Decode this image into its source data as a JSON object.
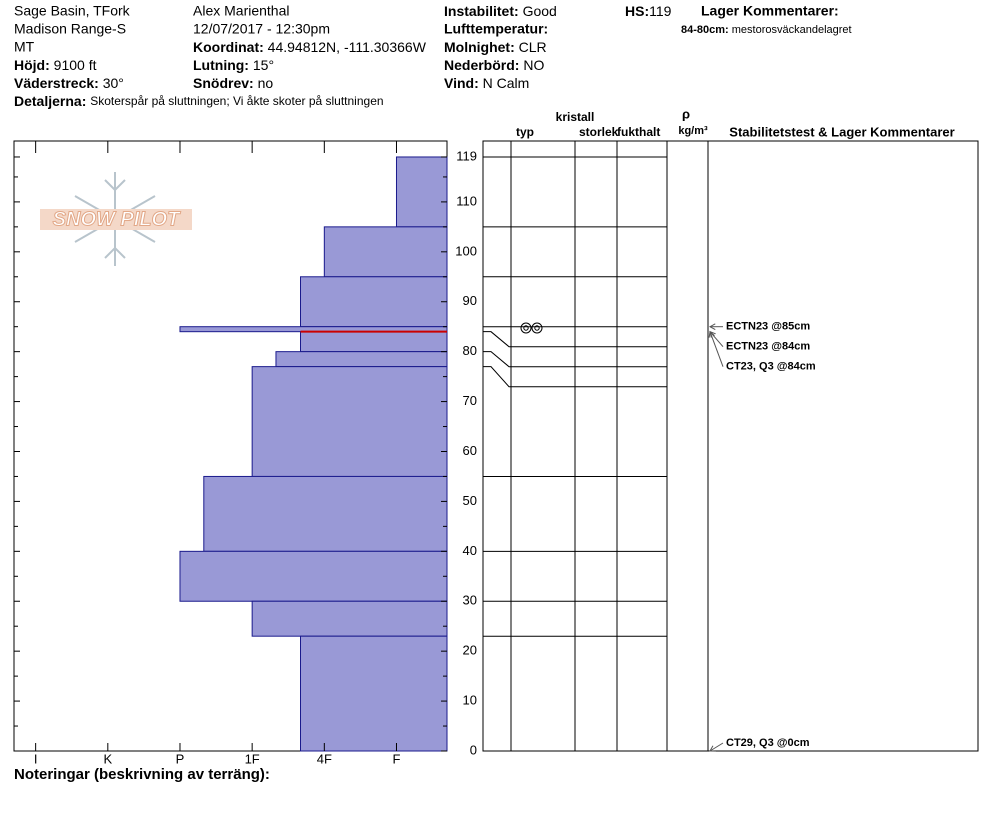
{
  "header": {
    "site": "Sage Basin, TFork",
    "range": "Madison Range-S",
    "state": "MT",
    "observer": "Alex Marienthal",
    "datetime": "12/07/2017 - 12:30pm",
    "elevation": {
      "label": "Höjd:",
      "value": "9100 ft"
    },
    "aspect": {
      "label": "Väderstreck:",
      "value": "30°"
    },
    "coordinates": {
      "label": "Koordinat:",
      "value": "44.94812N, -111.30366W"
    },
    "slope": {
      "label": "Lutning:",
      "value": "15°"
    },
    "wind_loading": {
      "label": "Snödrev:",
      "value": "no"
    },
    "instability": {
      "label": "Instabilitet:",
      "value": "Good"
    },
    "air_temperature": {
      "label": "Lufttemperatur:"
    },
    "sky": {
      "label": "Molnighet:",
      "value": "CLR"
    },
    "precipitation": {
      "label": "Nederbörd:",
      "value": "NO"
    },
    "wind": {
      "label": "Vind:",
      "value": "N Calm"
    },
    "hs": {
      "label": "HS:",
      "value": 119
    },
    "layer_comments_title": "Lager Kommentarer:",
    "layer_comment": {
      "label": "84-80cm:",
      "value": "mestorosväckandelagret"
    },
    "details": {
      "label": "Detaljerna:",
      "value": "Skoterspår på sluttningen; Vi åkte skoter på sluttningen"
    }
  },
  "chart_data": {
    "type": "snow-profile",
    "logo": "SNOW PILOT",
    "ylim": [
      0,
      122.2
    ],
    "yticks": [
      0,
      10,
      20,
      30,
      40,
      50,
      60,
      70,
      80,
      90,
      100,
      110,
      119
    ],
    "yminorticks": [
      5,
      15,
      25,
      35,
      45,
      55,
      65,
      75,
      85,
      95,
      105,
      115
    ],
    "xlim": [
      6.3,
      0.3
    ],
    "xticks": [
      {
        "value": 6,
        "label": "I"
      },
      {
        "value": 5,
        "label": "K"
      },
      {
        "value": 4,
        "label": "P"
      },
      {
        "value": 3,
        "label": "1F"
      },
      {
        "value": 2,
        "label": "4F"
      },
      {
        "value": 1,
        "label": "F"
      }
    ],
    "color": "#9999d6",
    "edge_color": "#1a1a8c",
    "layers": [
      {
        "top": 119,
        "bottom": 105,
        "hardness": 1
      },
      {
        "top": 105,
        "bottom": 95,
        "hardness": 2
      },
      {
        "top": 95,
        "bottom": 85,
        "hardness": 2.33
      },
      {
        "top": 85,
        "bottom": 84,
        "hardness": 4
      },
      {
        "top": 84,
        "bottom": 80,
        "hardness": 2.33
      },
      {
        "top": 80,
        "bottom": 77,
        "hardness": 2.67
      },
      {
        "top": 77,
        "bottom": 55,
        "hardness": 3
      },
      {
        "top": 55,
        "bottom": 40,
        "hardness": 3.67
      },
      {
        "top": 40,
        "bottom": 30,
        "hardness": 4
      },
      {
        "top": 30,
        "bottom": 23,
        "hardness": 3
      },
      {
        "top": 23,
        "bottom": 0,
        "hardness": 2.33
      }
    ],
    "critical_layer": 84,
    "critical_color": "#cc0000",
    "columns": {
      "crystal": "kristall",
      "type": "typ",
      "size": "storlek",
      "moisture": "fukthalt",
      "density_symbol": "ρ",
      "density_unit": "kg/m³",
      "comments": "Stabilitetstest & Lager Kommentarer"
    },
    "tests": [
      {
        "label": "ECTN23 @85cm",
        "height": 85
      },
      {
        "label": "ECTN23 @84cm",
        "height": 84
      },
      {
        "label": "CT23, Q3 @84cm",
        "height": 84
      },
      {
        "label": "CT29, Q3 @0cm",
        "height": 0
      }
    ]
  },
  "footer": {
    "notes_label": "Noteringar (beskrivning av terräng):"
  }
}
